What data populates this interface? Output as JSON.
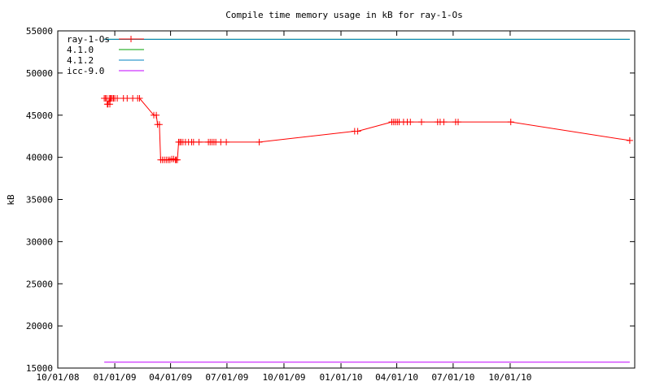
{
  "chart_data": {
    "type": "line",
    "title": "Compile time memory usage in kB for ray-1-Os",
    "xlabel": "",
    "ylabel": "kB",
    "ylim": [
      15000,
      55000
    ],
    "xlim": [
      "2008-10-01",
      "2011-04-20"
    ],
    "grid": false,
    "legend_position": "top-left",
    "x_ticks": [
      "10/01/08",
      "01/01/09",
      "04/01/09",
      "07/01/09",
      "10/01/09",
      "01/01/10",
      "04/01/10",
      "07/01/10",
      "10/01/10"
    ],
    "y_ticks": [
      15000,
      20000,
      25000,
      30000,
      35000,
      40000,
      45000,
      50000,
      55000
    ],
    "series": [
      {
        "name": "ray-1-Os",
        "color": "#ff0000",
        "marker": "plus",
        "x": [
          "2008-12-15",
          "2008-12-17",
          "2008-12-19",
          "2008-12-20",
          "2008-12-21",
          "2008-12-23",
          "2008-12-24",
          "2008-12-25",
          "2008-12-26",
          "2008-12-28",
          "2008-12-30",
          "2009-01-01",
          "2009-01-05",
          "2009-01-15",
          "2009-01-21",
          "2009-01-30",
          "2009-02-07",
          "2009-02-10",
          "2009-03-05",
          "2009-03-09",
          "2009-03-11",
          "2009-03-14",
          "2009-03-16",
          "2009-03-19",
          "2009-03-22",
          "2009-03-25",
          "2009-03-28",
          "2009-03-31",
          "2009-04-03",
          "2009-04-06",
          "2009-04-09",
          "2009-04-10",
          "2009-04-12",
          "2009-04-14",
          "2009-04-16",
          "2009-04-18",
          "2009-04-21",
          "2009-04-25",
          "2009-04-30",
          "2009-05-05",
          "2009-05-08",
          "2009-05-17",
          "2009-06-01",
          "2009-06-04",
          "2009-06-07",
          "2009-06-10",
          "2009-06-13",
          "2009-06-21",
          "2009-06-30",
          "2009-08-22",
          "2010-01-23",
          "2010-01-28",
          "2010-03-24",
          "2010-03-27",
          "2010-03-30",
          "2010-04-02",
          "2010-04-05",
          "2010-04-12",
          "2010-04-18",
          "2010-04-23",
          "2010-05-11",
          "2010-06-06",
          "2010-06-10",
          "2010-06-16",
          "2010-07-05",
          "2010-07-09",
          "2010-10-02",
          "2011-04-12"
        ],
        "values": [
          47000,
          47000,
          47000,
          46300,
          46300,
          47000,
          46300,
          47000,
          47000,
          47000,
          47000,
          47000,
          47000,
          47000,
          47000,
          47000,
          47000,
          47000,
          45000,
          45000,
          43900,
          43900,
          39700,
          39700,
          39700,
          39700,
          39700,
          39700,
          39800,
          39800,
          39700,
          39700,
          39700,
          41800,
          41800,
          41800,
          41800,
          41800,
          41800,
          41800,
          41800,
          41800,
          41800,
          41800,
          41800,
          41800,
          41800,
          41800,
          41800,
          41800,
          43100,
          43100,
          44200,
          44200,
          44200,
          44200,
          44200,
          44200,
          44200,
          44200,
          44200,
          44200,
          44200,
          44200,
          44200,
          44200,
          44200,
          42000
        ]
      },
      {
        "name": "4.1.0",
        "color": "#00a000",
        "marker": "none",
        "x": [
          "2008-12-15",
          "2011-04-12"
        ],
        "values": [
          54000,
          54000
        ]
      },
      {
        "name": "4.1.2",
        "color": "#0080c0",
        "marker": "none",
        "x": [
          "2008-12-15",
          "2011-04-12"
        ],
        "values": [
          54000,
          54000
        ]
      },
      {
        "name": "icc-9.0",
        "color": "#c000ff",
        "marker": "none",
        "x": [
          "2008-12-15",
          "2011-04-12"
        ],
        "values": [
          15700,
          15700
        ]
      }
    ]
  }
}
